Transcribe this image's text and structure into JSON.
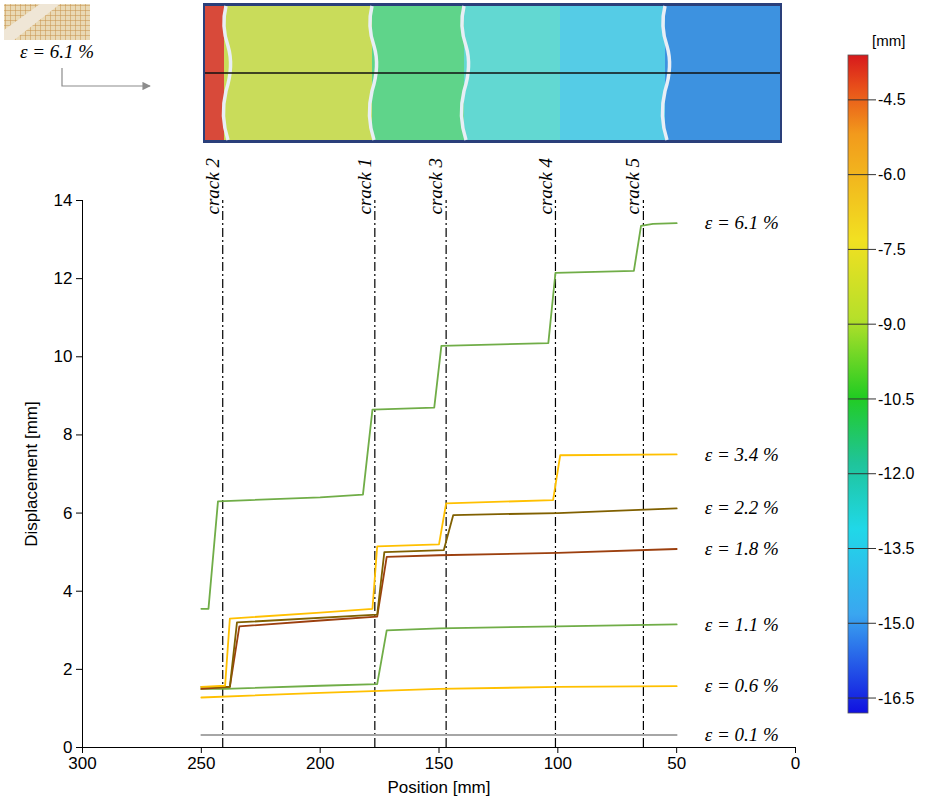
{
  "chart_data": {
    "type": "line",
    "x_label": "Position [mm]",
    "y_label": "Displacement [mm]",
    "xlim": [
      300,
      0
    ],
    "xticks": [
      300,
      250,
      200,
      150,
      100,
      50,
      0
    ],
    "ylim": [
      0,
      14
    ],
    "yticks": [
      0,
      2,
      4,
      6,
      8,
      10,
      12,
      14
    ],
    "photo_label": "ε = 6.1 %",
    "cracks": [
      {
        "label": "crack 2",
        "x": 241
      },
      {
        "label": "crack 1",
        "x": 177
      },
      {
        "label": "crack 3",
        "x": 147
      },
      {
        "label": "crack 4",
        "x": 101
      },
      {
        "label": "crack 5",
        "x": 64
      }
    ],
    "series": [
      {
        "name": "ε = 6.1 %",
        "color": "#70ad47",
        "x": [
          250,
          247,
          243,
          200,
          182,
          178,
          152,
          149,
          104,
          101,
          68,
          65,
          60,
          50
        ],
        "values": [
          3.55,
          3.55,
          6.3,
          6.4,
          6.47,
          8.65,
          8.7,
          10.28,
          10.35,
          12.15,
          12.2,
          13.35,
          13.4,
          13.42
        ]
      },
      {
        "name": "ε = 3.4 %",
        "color": "#ffc000",
        "x": [
          250,
          240,
          238,
          200,
          178,
          176,
          150,
          147,
          102,
          99,
          50
        ],
        "values": [
          1.55,
          1.58,
          3.3,
          3.45,
          3.55,
          5.15,
          5.2,
          6.25,
          6.33,
          7.48,
          7.5
        ]
      },
      {
        "name": "ε = 2.2 %",
        "color": "#806000",
        "x": [
          250,
          238,
          235,
          176,
          173,
          148,
          144,
          100,
          50
        ],
        "values": [
          1.55,
          1.55,
          3.2,
          3.4,
          5.0,
          5.05,
          5.95,
          6.0,
          6.12
        ]
      },
      {
        "name": "ε = 1.8 %",
        "color": "#9c3f0e",
        "x": [
          250,
          238,
          234,
          200,
          176,
          172,
          150,
          100,
          50
        ],
        "values": [
          1.5,
          1.55,
          3.1,
          3.25,
          3.35,
          4.88,
          4.92,
          4.98,
          5.08
        ]
      },
      {
        "name": "ε = 1.1 %",
        "color": "#70ad47",
        "x": [
          250,
          240,
          200,
          176,
          172,
          150,
          100,
          50
        ],
        "values": [
          1.5,
          1.5,
          1.58,
          1.62,
          3.0,
          3.05,
          3.1,
          3.15
        ]
      },
      {
        "name": "ε = 0.6 %",
        "color": "#ffc000",
        "x": [
          250,
          200,
          150,
          100,
          50
        ],
        "values": [
          1.28,
          1.4,
          1.5,
          1.55,
          1.57
        ]
      },
      {
        "name": "ε = 0.1 %",
        "color": "#a6a6a6",
        "x": [
          250,
          50
        ],
        "values": [
          0.32,
          0.32
        ]
      }
    ],
    "colorbar": {
      "label": "[mm]",
      "range": [
        -3.6,
        -16.8
      ],
      "ticks": [
        -4.5,
        {
          "value": -6,
          "label": "-6.0"
        },
        -7.5,
        {
          "value": -9,
          "label": "-9.0"
        },
        -10.5,
        {
          "value": -12,
          "label": "-12.0"
        },
        -13.5,
        {
          "value": -15,
          "label": "-15.0"
        },
        -16.5
      ]
    }
  }
}
